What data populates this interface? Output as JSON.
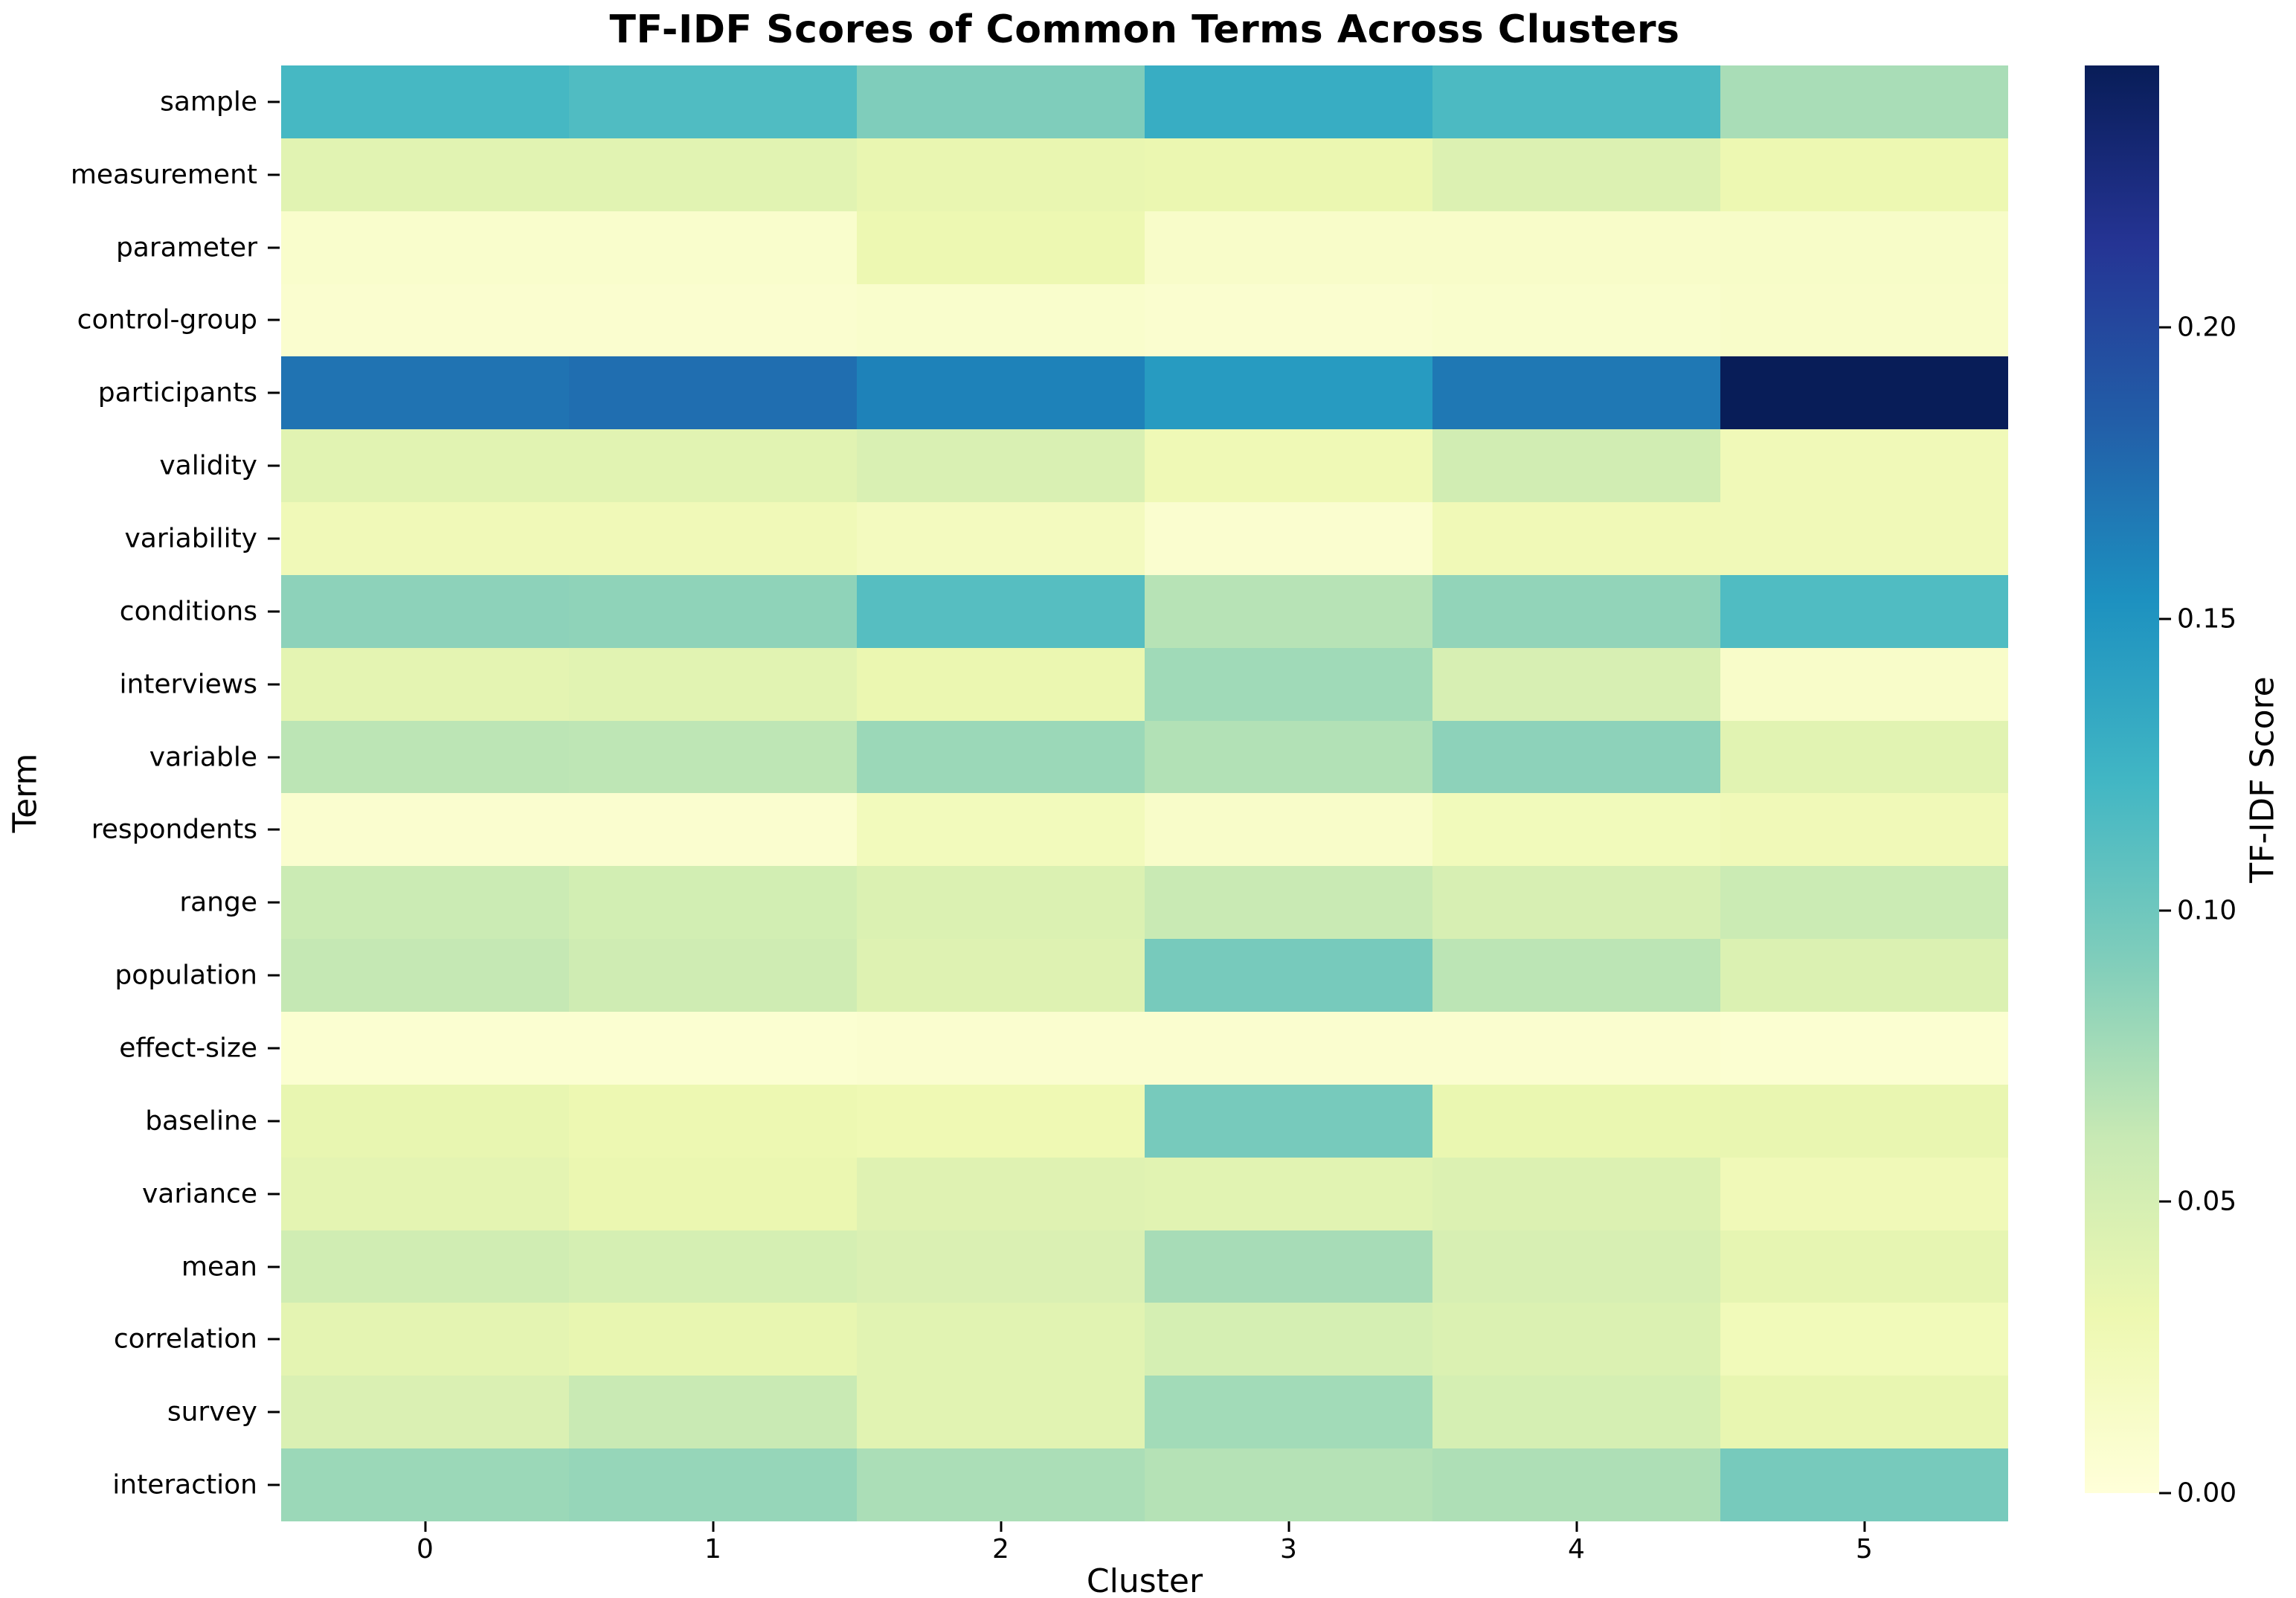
{
  "chart_data": {
    "type": "heatmap",
    "title": "TF-IDF Scores of Common Terms Across Clusters",
    "xlabel": "Cluster",
    "ylabel": "Term",
    "x_categories": [
      "0",
      "1",
      "2",
      "3",
      "4",
      "5"
    ],
    "y_categories": [
      "sample",
      "measurement",
      "parameter",
      "control-group",
      "participants",
      "validity",
      "variability",
      "conditions",
      "interviews",
      "variable",
      "respondents",
      "range",
      "population",
      "effect-size",
      "baseline",
      "variance",
      "mean",
      "correlation",
      "survey",
      "interaction"
    ],
    "values": [
      [
        0.12,
        0.115,
        0.092,
        0.13,
        0.117,
        0.074
      ],
      [
        0.04,
        0.04,
        0.034,
        0.032,
        0.044,
        0.03
      ],
      [
        0.01,
        0.01,
        0.03,
        0.012,
        0.012,
        0.013
      ],
      [
        0.008,
        0.008,
        0.01,
        0.008,
        0.01,
        0.012
      ],
      [
        0.171,
        0.174,
        0.162,
        0.145,
        0.168,
        0.245
      ],
      [
        0.04,
        0.04,
        0.047,
        0.027,
        0.053,
        0.025
      ],
      [
        0.025,
        0.025,
        0.02,
        0.008,
        0.026,
        0.025
      ],
      [
        0.086,
        0.085,
        0.112,
        0.068,
        0.084,
        0.115
      ],
      [
        0.038,
        0.04,
        0.032,
        0.078,
        0.048,
        0.012
      ],
      [
        0.066,
        0.065,
        0.08,
        0.07,
        0.086,
        0.04
      ],
      [
        0.008,
        0.008,
        0.022,
        0.012,
        0.023,
        0.025
      ],
      [
        0.058,
        0.052,
        0.045,
        0.06,
        0.048,
        0.058
      ],
      [
        0.062,
        0.055,
        0.043,
        0.096,
        0.066,
        0.045
      ],
      [
        0.006,
        0.006,
        0.008,
        0.008,
        0.008,
        0.006
      ],
      [
        0.035,
        0.03,
        0.028,
        0.096,
        0.033,
        0.034
      ],
      [
        0.038,
        0.032,
        0.042,
        0.04,
        0.044,
        0.025
      ],
      [
        0.054,
        0.05,
        0.046,
        0.075,
        0.048,
        0.036
      ],
      [
        0.038,
        0.035,
        0.04,
        0.05,
        0.045,
        0.024
      ],
      [
        0.046,
        0.06,
        0.04,
        0.077,
        0.05,
        0.035
      ],
      [
        0.08,
        0.082,
        0.073,
        0.069,
        0.072,
        0.096
      ]
    ],
    "vmin": 0.0,
    "vmax": 0.245,
    "grid": false,
    "legend": null,
    "colorbar": {
      "label": "TF-IDF Score",
      "tick_values": [
        0.0,
        0.05,
        0.1,
        0.15,
        0.2
      ],
      "tick_labels": [
        "0.00",
        "0.05",
        "0.10",
        "0.15",
        "0.20"
      ]
    },
    "colormap": {
      "name": "YlGnBu",
      "anchors": [
        {
          "pos": 0.0,
          "color": "#ffffd9"
        },
        {
          "pos": 0.125,
          "color": "#edf8b1"
        },
        {
          "pos": 0.25,
          "color": "#c7e9b4"
        },
        {
          "pos": 0.375,
          "color": "#7fcdbb"
        },
        {
          "pos": 0.5,
          "color": "#41b6c4"
        },
        {
          "pos": 0.625,
          "color": "#1d91c0"
        },
        {
          "pos": 0.75,
          "color": "#225ea8"
        },
        {
          "pos": 0.875,
          "color": "#253494"
        },
        {
          "pos": 1.0,
          "color": "#081d58"
        }
      ]
    },
    "colors": {
      "background": "#ffffff",
      "text": "#000000",
      "max_cell": "#081d58",
      "min_cell": "#ffffd9"
    }
  }
}
